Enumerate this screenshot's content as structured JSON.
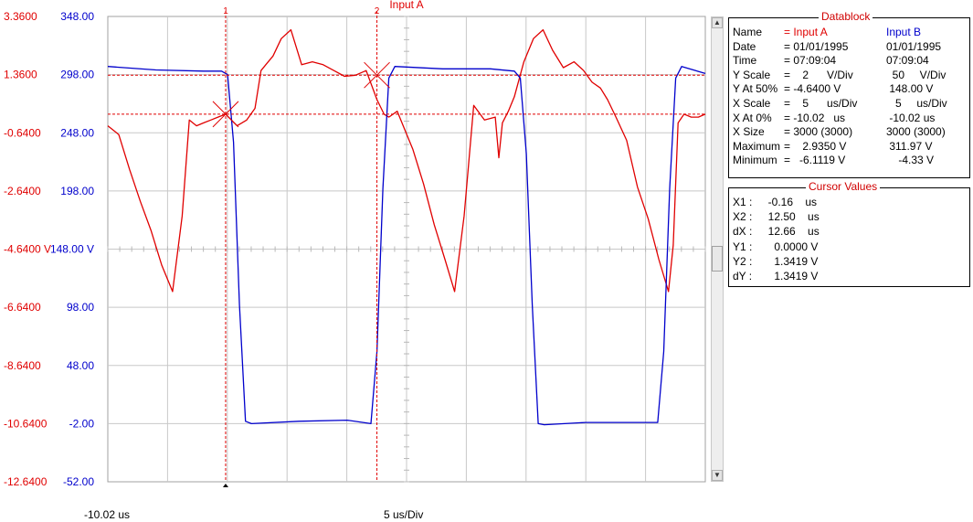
{
  "title": "Input A",
  "left_axis_ticks": [
    "3.3600",
    "1.3600",
    "-0.6400",
    "-2.6400",
    "-4.6400 V",
    "-6.6400",
    "-8.6400",
    "-10.6400",
    "-12.6400"
  ],
  "right_axis_ticks": [
    "348.00",
    "298.00",
    "248.00",
    "198.00",
    "148.00 V",
    "98.00",
    "48.00",
    "-2.00",
    "-52.00"
  ],
  "x_start_label": "-10.02 us",
  "x_scale_label": "5 us/Div",
  "cursor_labels": [
    "1",
    "2"
  ],
  "colors": {
    "input_a": "#e00000",
    "input_b": "#0000cc",
    "grid": "#c8c8c8",
    "cursor": "#e00000"
  },
  "chart_data": {
    "type": "line",
    "x_unit": "us",
    "x_range": [
      -10.02,
      39.98
    ],
    "grid_divisions": {
      "x": 10,
      "y": 8
    },
    "series": [
      {
        "name": "Input A",
        "y_unit": "V",
        "y_range": [
          -12.64,
          3.36
        ],
        "x": [
          -10.02,
          -9.1,
          -8.2,
          -7.3,
          -6.4,
          -5.5,
          -4.6,
          -3.8,
          -3.2,
          -2.6,
          -2.0,
          -1.4,
          -0.8,
          -0.16,
          0.8,
          1.6,
          2.3,
          2.8,
          3.2,
          3.8,
          4.5,
          5.3,
          6.2,
          7.1,
          8.0,
          8.9,
          9.8,
          10.7,
          11.6,
          12.5,
          13.1,
          13.5,
          14.2,
          14.8,
          15.5,
          16.4,
          17.3,
          18.2,
          19.0,
          19.8,
          20.6,
          21.5,
          22.4,
          22.7,
          23.0,
          23.5,
          24.0,
          24.8,
          25.6,
          26.4,
          27.2,
          28.1,
          29.0,
          29.8,
          30.5,
          31.2,
          31.8,
          32.5,
          33.4,
          34.3,
          35.2,
          36.1,
          36.9,
          37.3,
          37.7,
          38.2,
          38.8,
          39.4,
          39.98
        ],
        "values": [
          -0.4,
          -0.7,
          -1.9,
          -3.0,
          -4.0,
          -5.2,
          -6.1,
          -3.5,
          -0.2,
          -0.4,
          -0.3,
          -0.2,
          -0.1,
          0.0,
          -0.4,
          -0.2,
          0.2,
          1.5,
          1.7,
          2.0,
          2.6,
          2.9,
          1.7,
          1.8,
          1.7,
          1.5,
          1.3,
          1.34,
          1.5,
          0.5,
          0.0,
          -0.1,
          0.1,
          -0.5,
          -1.2,
          -2.4,
          -3.8,
          -5.0,
          -6.1,
          -3.5,
          0.3,
          -0.2,
          -0.1,
          -1.5,
          -0.3,
          0.1,
          0.6,
          1.8,
          2.6,
          2.9,
          2.2,
          1.6,
          1.8,
          1.5,
          1.1,
          0.9,
          0.5,
          -0.1,
          -0.9,
          -2.5,
          -3.6,
          -5.0,
          -6.1,
          -4.5,
          -0.3,
          0.0,
          -0.1,
          -0.1,
          0.0
        ]
      },
      {
        "name": "Input B",
        "y_unit": "V",
        "y_range": [
          -52,
          348
        ],
        "x": [
          -10.02,
          -6.0,
          -2.0,
          -0.5,
          0.0,
          0.5,
          1.0,
          1.5,
          2.0,
          6.0,
          10.0,
          12.0,
          12.5,
          13.0,
          13.5,
          14.0,
          18.0,
          22.0,
          24.0,
          24.5,
          25.0,
          25.5,
          26.0,
          26.5,
          30.0,
          34.0,
          36.0,
          36.5,
          37.0,
          37.5,
          38.0,
          39.98
        ],
        "values": [
          305,
          302,
          301,
          301,
          298,
          240,
          100,
          0,
          -2,
          0,
          1,
          -2,
          60,
          200,
          295,
          305,
          303,
          303,
          301,
          295,
          230,
          100,
          -2,
          -3,
          -1,
          -1,
          -1,
          60,
          200,
          295,
          305,
          299
        ]
      }
    ],
    "cursors": [
      {
        "label": "1",
        "x": -0.16
      },
      {
        "label": "2",
        "x": 12.5
      }
    ],
    "cursor_y_levels": [
      0.0,
      1.3419
    ]
  },
  "datablock": {
    "title": "Datablock",
    "rows": [
      {
        "label": "Name",
        "a": "= Input A",
        "b": "Input B"
      },
      {
        "label": "Date",
        "a": "= 01/01/1995",
        "b": "01/01/1995"
      },
      {
        "label": "Time",
        "a": "= 07:09:04",
        "b": "07:09:04"
      },
      {
        "label": "Y Scale",
        "a": "=    2      V/Div",
        "b": "  50     V/Div"
      },
      {
        "label": "Y At 50%",
        "a": "= -4.6400 V",
        "b": " 148.00 V"
      },
      {
        "label": "X Scale",
        "a": "=    5      us/Div",
        "b": "   5     us/Div"
      },
      {
        "label": "X At 0%",
        "a": "= -10.02   us",
        "b": " -10.02 us"
      },
      {
        "label": "X Size",
        "a": "= 3000 (3000)",
        "b": "3000 (3000)"
      },
      {
        "label": "Maximum",
        "a": "=    2.9350 V",
        "b": " 311.97 V"
      },
      {
        "label": "Minimum",
        "a": "=   -6.1119 V",
        "b": "    -4.33 V"
      }
    ]
  },
  "cursor_values": {
    "title": "Cursor Values",
    "rows": [
      {
        "label": "X1 :",
        "value": "  -0.16    us"
      },
      {
        "label": "X2 :",
        "value": "  12.50    us"
      },
      {
        "label": "dX :",
        "value": "  12.66    us"
      },
      {
        "label": "Y1 :",
        "value": "    0.0000 V"
      },
      {
        "label": "Y2 :",
        "value": "    1.3419 V"
      },
      {
        "label": "dY :",
        "value": "    1.3419 V"
      }
    ]
  }
}
